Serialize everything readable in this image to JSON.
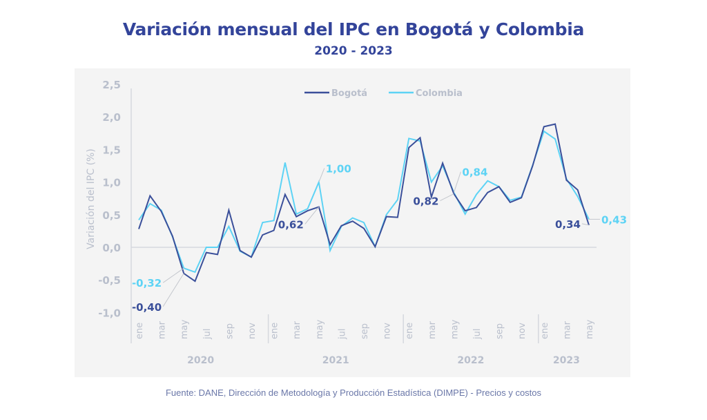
{
  "header": {
    "title": "Variación mensual del IPC en Bogotá y Colombia",
    "subtitle": "2020 - 2023"
  },
  "footer": {
    "source": "Fuente: DANE, Dirección de Metodología y Producción Estadística (DIMPE) - Precios y costos"
  },
  "colors": {
    "title": "#33449a",
    "bogota": "#3a4f9a",
    "colombia": "#5dd3f5",
    "axis_text": "#b9bfcc",
    "axis_line": "#d5d8de",
    "panel_bg": "#f4f4f4"
  },
  "chart_data": {
    "type": "line",
    "title": "Variación mensual del IPC en Bogotá y Colombia",
    "subtitle": "2020 - 2023",
    "xlabel": "",
    "ylabel": "Variación del IPC (%)",
    "ylim": [
      -1.0,
      2.5
    ],
    "yticks": [
      -1.0,
      -0.5,
      0.0,
      0.5,
      1.0,
      1.5,
      2.0,
      2.5
    ],
    "ytick_labels": [
      "-1,0",
      "-0,5",
      "0,0",
      "0,5",
      "1,0",
      "1,5",
      "2,0",
      "2,5"
    ],
    "grid": false,
    "legend_position": "top-center",
    "x_month_ticks": [
      {
        "index": 0,
        "label": "ene"
      },
      {
        "index": 2,
        "label": "mar"
      },
      {
        "index": 4,
        "label": "may"
      },
      {
        "index": 6,
        "label": "jul"
      },
      {
        "index": 8,
        "label": "sep"
      },
      {
        "index": 10,
        "label": "nov"
      },
      {
        "index": 12,
        "label": "ene"
      },
      {
        "index": 14,
        "label": "mar"
      },
      {
        "index": 16,
        "label": "may"
      },
      {
        "index": 18,
        "label": "jul"
      },
      {
        "index": 20,
        "label": "sep"
      },
      {
        "index": 22,
        "label": "nov"
      },
      {
        "index": 24,
        "label": "ene"
      },
      {
        "index": 26,
        "label": "mar"
      },
      {
        "index": 28,
        "label": "may"
      },
      {
        "index": 30,
        "label": "jul"
      },
      {
        "index": 32,
        "label": "sep"
      },
      {
        "index": 34,
        "label": "nov"
      },
      {
        "index": 36,
        "label": "ene"
      },
      {
        "index": 38,
        "label": "mar"
      },
      {
        "index": 40,
        "label": "may"
      }
    ],
    "year_groups": [
      {
        "label": "2020",
        "start": 0,
        "end": 11
      },
      {
        "label": "2021",
        "start": 12,
        "end": 23
      },
      {
        "label": "2022",
        "start": 24,
        "end": 35
      },
      {
        "label": "2023",
        "start": 36,
        "end": 40
      }
    ],
    "series": [
      {
        "name": "Bogotá",
        "color": "#3a4f9a",
        "values": [
          0.28,
          0.79,
          0.55,
          0.17,
          -0.4,
          -0.52,
          -0.08,
          -0.11,
          0.57,
          -0.05,
          -0.15,
          0.19,
          0.26,
          0.81,
          0.47,
          0.56,
          0.62,
          0.04,
          0.33,
          0.4,
          0.29,
          0.01,
          0.47,
          0.46,
          1.53,
          1.68,
          0.77,
          1.29,
          0.82,
          0.56,
          0.61,
          0.84,
          0.93,
          0.69,
          0.76,
          1.25,
          1.85,
          1.89,
          1.03,
          0.88,
          0.34
        ]
      },
      {
        "name": "Colombia",
        "color": "#5dd3f5",
        "values": [
          0.42,
          0.67,
          0.57,
          0.16,
          -0.32,
          -0.38,
          0.0,
          0.0,
          0.32,
          -0.06,
          -0.15,
          0.38,
          0.41,
          1.3,
          0.51,
          0.59,
          1.0,
          -0.05,
          0.32,
          0.45,
          0.38,
          0.01,
          0.5,
          0.73,
          1.67,
          1.63,
          1.0,
          1.25,
          0.84,
          0.51,
          0.81,
          1.02,
          0.93,
          0.72,
          0.77,
          1.26,
          1.78,
          1.66,
          1.05,
          0.78,
          0.43
        ]
      }
    ],
    "annotations": [
      {
        "series": "Colombia",
        "index": 4,
        "text": "-0,32",
        "side": "left"
      },
      {
        "series": "Bogotá",
        "index": 4,
        "text": "-0,40",
        "side": "left"
      },
      {
        "series": "Colombia",
        "index": 16,
        "text": "1,00",
        "side": "upper-right"
      },
      {
        "series": "Bogotá",
        "index": 16,
        "text": "0,62",
        "side": "lower-left"
      },
      {
        "series": "Colombia",
        "index": 28,
        "text": "0,84",
        "side": "upper-right"
      },
      {
        "series": "Bogotá",
        "index": 28,
        "text": "0,82",
        "side": "lower-left"
      },
      {
        "series": "Bogotá",
        "index": 40,
        "text": "0,34",
        "side": "left"
      },
      {
        "series": "Colombia",
        "index": 40,
        "text": "0,43",
        "side": "right"
      }
    ]
  }
}
